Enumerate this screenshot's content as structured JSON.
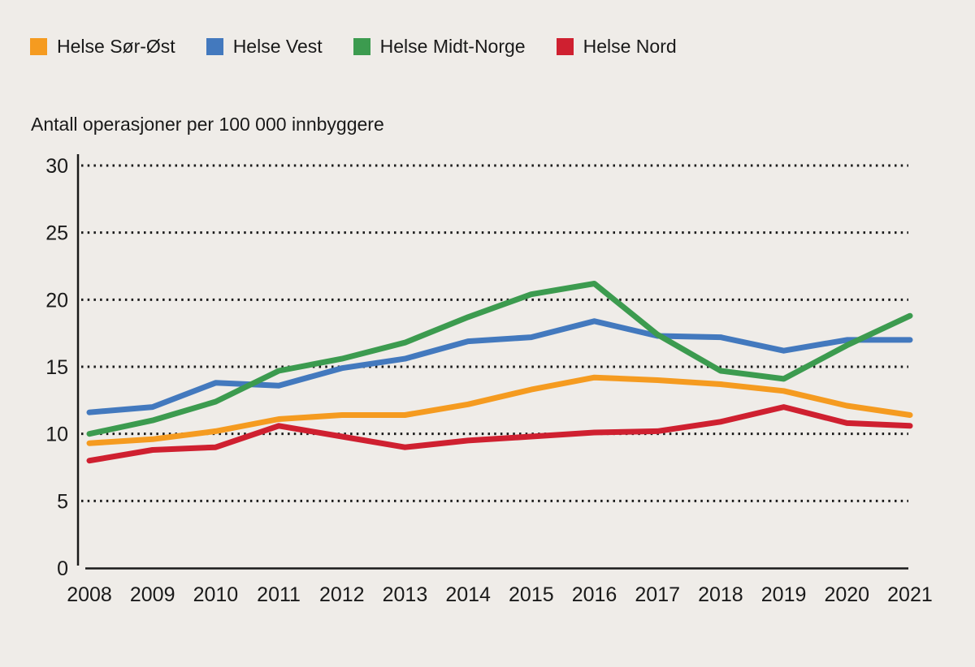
{
  "figure": {
    "background_color": "#EFECE8",
    "text_color": "#1A1A1A"
  },
  "chart_title": "Antall operasjoner per 100 000 innbyggere",
  "legend": {
    "position": "top",
    "items": [
      {
        "key": "helse-sor-ost",
        "label": "Helse Sør-Øst",
        "color": "#F59B20"
      },
      {
        "key": "helse-vest",
        "label": "Helse Vest",
        "color": "#4379BE"
      },
      {
        "key": "helse-midt-norge",
        "label": "Helse Midt-Norge",
        "color": "#3C9B4F"
      },
      {
        "key": "helse-nord",
        "label": "Helse Nord",
        "color": "#CF2030"
      }
    ]
  },
  "chart_data": {
    "type": "line",
    "title": "Antall operasjoner per 100 000 innbyggere",
    "xlabel": "",
    "ylabel": "Antall operasjoner per 100 000 innbyggere",
    "x": [
      2008,
      2009,
      2010,
      2011,
      2012,
      2013,
      2014,
      2015,
      2016,
      2017,
      2018,
      2019,
      2020,
      2021
    ],
    "series": [
      {
        "key": "helse-sor-ost",
        "name": "Helse Sør-Øst",
        "color": "#F59B20",
        "values": [
          9.3,
          9.6,
          10.2,
          11.1,
          11.4,
          11.4,
          12.2,
          13.3,
          14.2,
          14.0,
          13.7,
          13.2,
          12.1,
          11.4
        ]
      },
      {
        "key": "helse-vest",
        "name": "Helse Vest",
        "color": "#4379BE",
        "values": [
          11.6,
          12.0,
          13.8,
          13.6,
          14.9,
          15.6,
          16.9,
          17.2,
          18.4,
          17.3,
          17.2,
          16.2,
          17.0,
          17.0
        ]
      },
      {
        "key": "helse-midt-norge",
        "name": "Helse Midt-Norge",
        "color": "#3C9B4F",
        "values": [
          10.0,
          11.0,
          12.4,
          14.7,
          15.6,
          16.8,
          18.7,
          20.4,
          21.2,
          17.4,
          14.7,
          14.1,
          16.6,
          18.8
        ]
      },
      {
        "key": "helse-nord",
        "name": "Helse Nord",
        "color": "#CF2030",
        "values": [
          8.0,
          8.8,
          9.0,
          10.6,
          9.8,
          9.0,
          9.5,
          9.8,
          10.1,
          10.2,
          10.9,
          12.0,
          10.8,
          10.6
        ]
      }
    ],
    "ylim": [
      0,
      30
    ],
    "yticks": [
      0,
      5,
      10,
      15,
      20,
      25,
      30
    ],
    "grid": "horizontal-dotted",
    "legend_position": "top"
  }
}
